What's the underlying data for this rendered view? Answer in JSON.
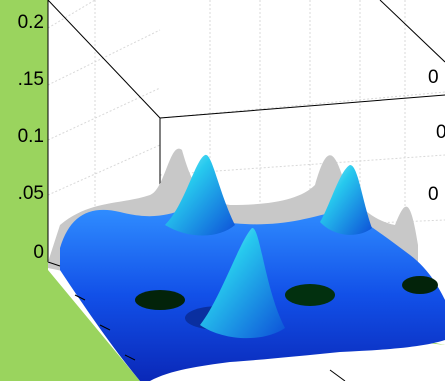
{
  "chart_data": {
    "type": "surface-3d",
    "title": "",
    "xlabel": "",
    "ylabel": "",
    "zlabel": "",
    "zlim": [
      0,
      0.2
    ],
    "z_ticks": [
      {
        "value": 0,
        "label": "0"
      },
      {
        "value": 0.05,
        "label": ".05"
      },
      {
        "value": 0.1,
        "label": "0.1"
      },
      {
        "value": 0.15,
        "label": ".15"
      },
      {
        "value": 0.2,
        "label": "0.2"
      }
    ],
    "right_axis_labels": [
      "0",
      "0",
      "0"
    ],
    "grid": true,
    "colormap": "jet (blue to cyan)",
    "shadow_color": "#c8c8c8",
    "background_color": "#9ad45e",
    "peaks": [
      {
        "name": "back-peak",
        "z": 0.105
      },
      {
        "name": "right-peak",
        "z": 0.095
      },
      {
        "name": "front-peak",
        "z": 0.085
      }
    ]
  }
}
